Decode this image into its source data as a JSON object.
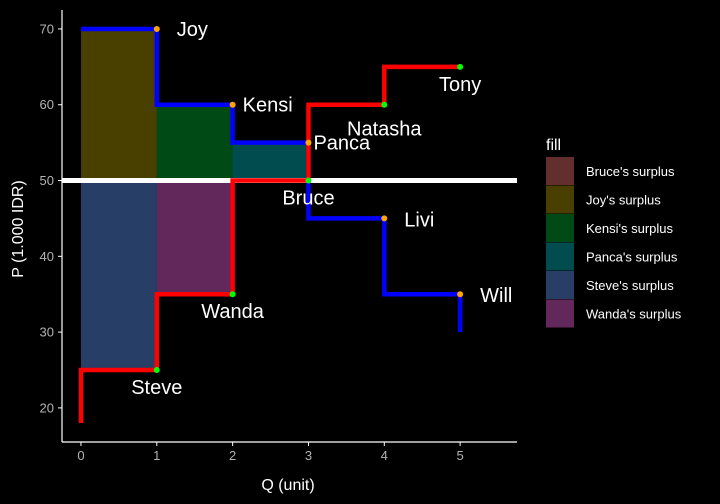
{
  "chart_data": {
    "type": "line",
    "xlabel": "Q (unit)",
    "ylabel": "P (1.000 IDR)",
    "xlim": [
      -0.25,
      5.75
    ],
    "ylim": [
      15.5,
      72.5
    ],
    "x_ticks": [
      0,
      1,
      2,
      3,
      4,
      5
    ],
    "y_ticks": [
      20,
      30,
      40,
      50,
      60,
      70
    ],
    "price_line": 50,
    "demand_step": [
      [
        0,
        70
      ],
      [
        1,
        70
      ],
      [
        1,
        60
      ],
      [
        2,
        60
      ],
      [
        2,
        55
      ],
      [
        3,
        55
      ],
      [
        3,
        45
      ],
      [
        4,
        45
      ],
      [
        4,
        35
      ],
      [
        5,
        35
      ],
      [
        5,
        30
      ]
    ],
    "supply_step": [
      [
        0,
        18
      ],
      [
        0,
        25
      ],
      [
        1,
        25
      ],
      [
        1,
        35
      ],
      [
        2,
        35
      ],
      [
        2,
        50
      ],
      [
        3,
        50
      ],
      [
        3,
        60
      ],
      [
        4,
        60
      ],
      [
        4,
        65
      ],
      [
        5,
        65
      ]
    ],
    "buyers": [
      {
        "name": "Joy",
        "x": 1,
        "y": 70
      },
      {
        "name": "Kensi",
        "x": 2,
        "y": 60
      },
      {
        "name": "Panca",
        "x": 3,
        "y": 55
      },
      {
        "name": "Livi",
        "x": 4,
        "y": 45
      },
      {
        "name": "Will",
        "x": 5,
        "y": 35
      }
    ],
    "sellers": [
      {
        "name": "Steve",
        "x": 1,
        "y": 25
      },
      {
        "name": "Wanda",
        "x": 2,
        "y": 35
      },
      {
        "name": "Bruce",
        "x": 3,
        "y": 50
      },
      {
        "name": "Natasha",
        "x": 4,
        "y": 60
      },
      {
        "name": "Tony",
        "x": 5,
        "y": 65
      }
    ],
    "surplus_areas": [
      {
        "name": "Joy's surplus",
        "x0": 0,
        "x1": 1,
        "y0": 50,
        "y1": 70
      },
      {
        "name": "Kensi's surplus",
        "x0": 1,
        "x1": 2,
        "y0": 50,
        "y1": 60
      },
      {
        "name": "Panca's surplus",
        "x0": 2,
        "x1": 3,
        "y0": 50,
        "y1": 55
      },
      {
        "name": "Steve's surplus",
        "x0": 0,
        "x1": 1,
        "y0": 25,
        "y1": 50
      },
      {
        "name": "Wanda's surplus",
        "x0": 1,
        "x1": 2,
        "y0": 35,
        "y1": 50
      }
    ],
    "legend": {
      "title": "fill",
      "position": "right",
      "entries": [
        {
          "label": "Bruce's surplus",
          "color": "#F8766D"
        },
        {
          "label": "Joy's surplus",
          "color": "#B79F00"
        },
        {
          "label": "Kensi's surplus",
          "color": "#00BA38"
        },
        {
          "label": "Panca's surplus",
          "color": "#00BFC4"
        },
        {
          "label": "Steve's surplus",
          "color": "#619CFF"
        },
        {
          "label": "Wanda's surplus",
          "color": "#F564E3"
        }
      ]
    },
    "colors": {
      "background": "#000000",
      "demand": "#0000FF",
      "supply": "#FF0000",
      "price_line": "#FFFFFF",
      "buyer_point": "#FFA500",
      "seller_point": "#00FF00"
    }
  }
}
